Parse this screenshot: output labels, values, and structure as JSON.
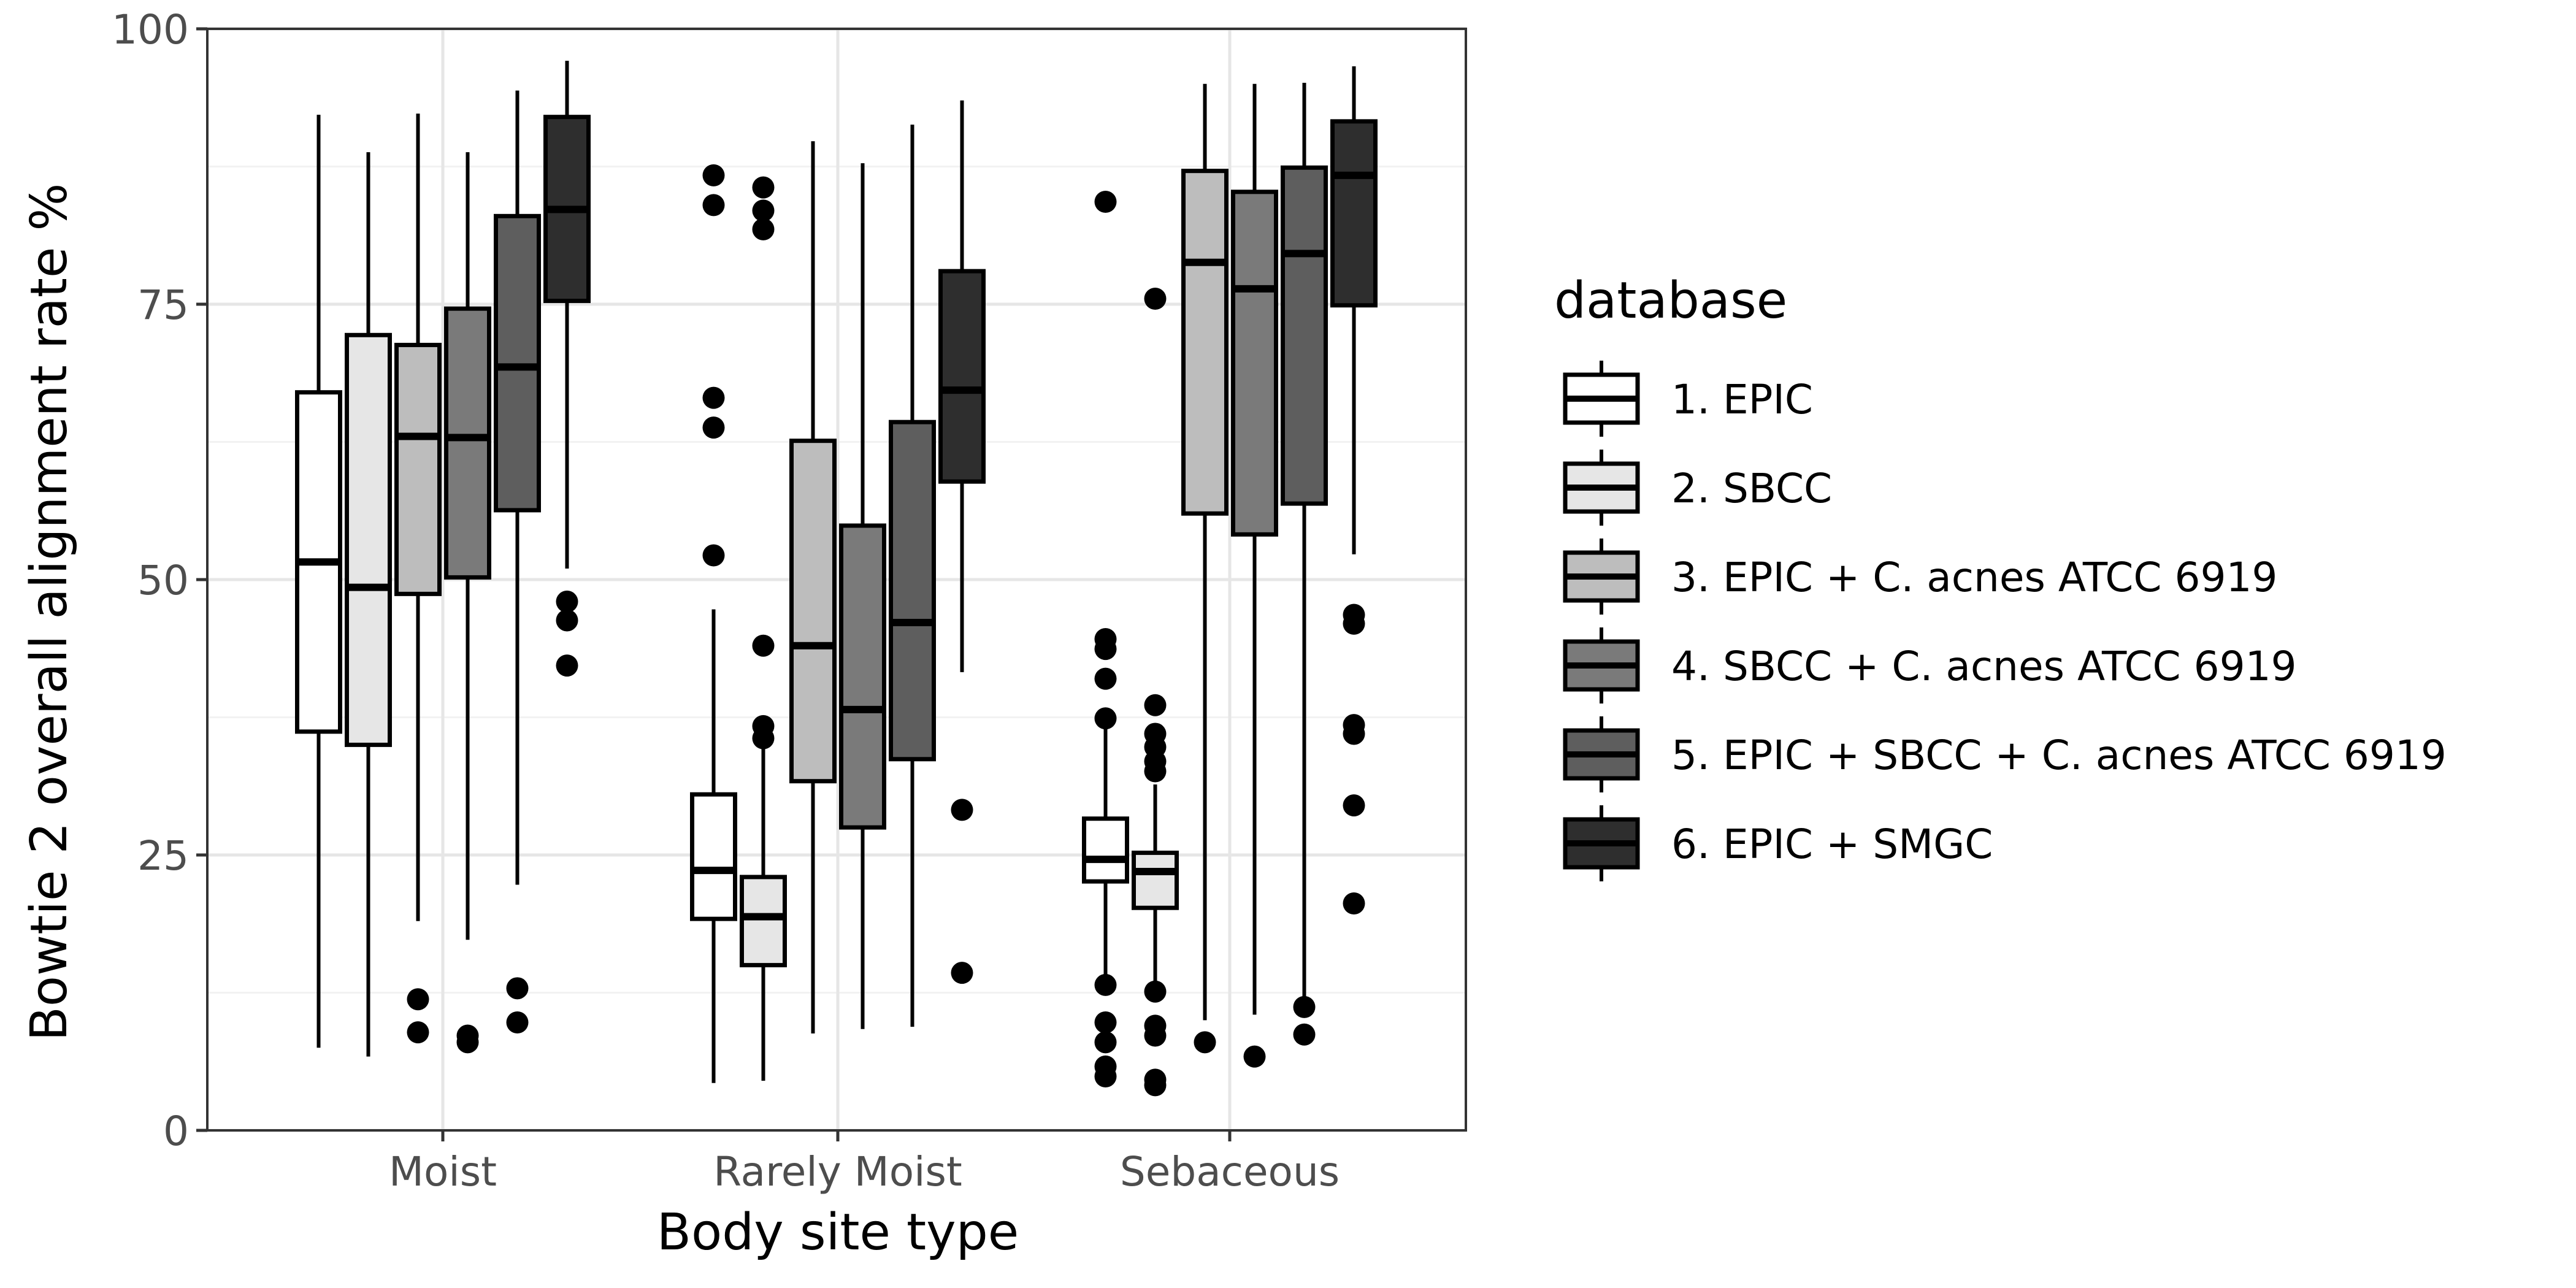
{
  "chart_data": {
    "type": "boxplot",
    "title": "",
    "xlabel": "Body site type",
    "ylabel": "Bowtie 2 overall alignment rate %",
    "categories": [
      "Moist",
      "Rarely Moist",
      "Sebaceous"
    ],
    "ylim": [
      0,
      100
    ],
    "yticks": [
      0,
      25,
      50,
      75,
      100
    ],
    "grid": true,
    "legend": {
      "title": "database",
      "position": "right"
    },
    "series": [
      {
        "name": "1. EPIC",
        "fill": "#ffffff",
        "boxes": [
          {
            "category": "Moist",
            "min": 7.5,
            "q1": 36.2,
            "median": 51.6,
            "q3": 67.0,
            "max": 92.2,
            "outliers": []
          },
          {
            "category": "Rarely Moist",
            "min": 4.3,
            "q1": 19.2,
            "median": 23.6,
            "q3": 30.5,
            "max": 47.3,
            "outliers": [
              52.2,
              63.8,
              66.5,
              84.0,
              86.7
            ]
          },
          {
            "category": "Sebaceous",
            "min": 13.9,
            "q1": 22.6,
            "median": 24.6,
            "q3": 28.3,
            "max": 36.7,
            "outliers": [
              4.9,
              5.8,
              8.0,
              9.8,
              13.2,
              37.4,
              41.0,
              43.7,
              44.6,
              84.3
            ]
          }
        ]
      },
      {
        "name": "2. SBCC",
        "fill": "#e6e6e6",
        "boxes": [
          {
            "category": "Moist",
            "min": 6.7,
            "q1": 35.0,
            "median": 49.3,
            "q3": 72.2,
            "max": 88.8,
            "outliers": []
          },
          {
            "category": "Rarely Moist",
            "min": 4.5,
            "q1": 15.0,
            "median": 19.4,
            "q3": 23.0,
            "max": 34.7,
            "outliers": [
              35.6,
              36.7,
              44.0,
              81.8,
              83.5,
              85.6
            ]
          },
          {
            "category": "Sebaceous",
            "min": 13.3,
            "q1": 20.2,
            "median": 23.5,
            "q3": 25.2,
            "max": 31.4,
            "outliers": [
              4.1,
              4.6,
              8.6,
              9.5,
              12.6,
              32.6,
              33.5,
              34.8,
              36.0,
              38.6,
              75.5
            ]
          }
        ]
      },
      {
        "name": "3. EPIC + C. acnes ATCC 6919",
        "fill": "#bdbdbd",
        "boxes": [
          {
            "category": "Moist",
            "min": 19.0,
            "q1": 48.7,
            "median": 63.0,
            "q3": 71.3,
            "max": 92.3,
            "outliers": [
              8.9,
              11.9
            ]
          },
          {
            "category": "Rarely Moist",
            "min": 8.8,
            "q1": 31.7,
            "median": 44.0,
            "q3": 62.6,
            "max": 89.8,
            "outliers": []
          },
          {
            "category": "Sebaceous",
            "min": 10.0,
            "q1": 56.0,
            "median": 78.8,
            "q3": 87.1,
            "max": 95.0,
            "outliers": [
              8.0
            ]
          }
        ]
      },
      {
        "name": "4. SBCC + C. acnes ATCC 6919",
        "fill": "#7a7a7a",
        "boxes": [
          {
            "category": "Moist",
            "min": 17.3,
            "q1": 50.2,
            "median": 62.9,
            "q3": 74.6,
            "max": 88.8,
            "outliers": [
              8.0,
              8.6
            ]
          },
          {
            "category": "Rarely Moist",
            "min": 9.2,
            "q1": 27.5,
            "median": 38.2,
            "q3": 54.9,
            "max": 87.8,
            "outliers": []
          },
          {
            "category": "Sebaceous",
            "min": 10.5,
            "q1": 54.1,
            "median": 76.4,
            "q3": 85.2,
            "max": 95.0,
            "outliers": [
              6.7
            ]
          }
        ]
      },
      {
        "name": "5. EPIC + SBCC + C. acnes ATCC 6919",
        "fill": "#5e5e5e",
        "boxes": [
          {
            "category": "Moist",
            "min": 22.3,
            "q1": 56.3,
            "median": 69.3,
            "q3": 83.0,
            "max": 94.4,
            "outliers": [
              9.8,
              12.9
            ]
          },
          {
            "category": "Rarely Moist",
            "min": 9.4,
            "q1": 33.7,
            "median": 46.1,
            "q3": 64.3,
            "max": 91.3,
            "outliers": []
          },
          {
            "category": "Sebaceous",
            "min": 11.9,
            "q1": 56.9,
            "median": 79.6,
            "q3": 87.4,
            "max": 95.1,
            "outliers": [
              8.7,
              11.2
            ]
          }
        ]
      },
      {
        "name": "6. EPIC + SMGC",
        "fill": "#2e2e2e",
        "boxes": [
          {
            "category": "Moist",
            "min": 51.0,
            "q1": 75.3,
            "median": 83.6,
            "q3": 92.0,
            "max": 97.1,
            "outliers": [
              42.2,
              46.3,
              48.0
            ]
          },
          {
            "category": "Rarely Moist",
            "min": 41.6,
            "q1": 58.9,
            "median": 67.2,
            "q3": 78.0,
            "max": 93.5,
            "outliers": [
              14.3,
              29.1
            ]
          },
          {
            "category": "Sebaceous",
            "min": 52.3,
            "q1": 74.9,
            "median": 86.7,
            "q3": 91.6,
            "max": 96.6,
            "outliers": [
              20.6,
              29.5,
              36.0,
              36.8,
              46.0,
              46.8
            ]
          }
        ]
      }
    ]
  }
}
